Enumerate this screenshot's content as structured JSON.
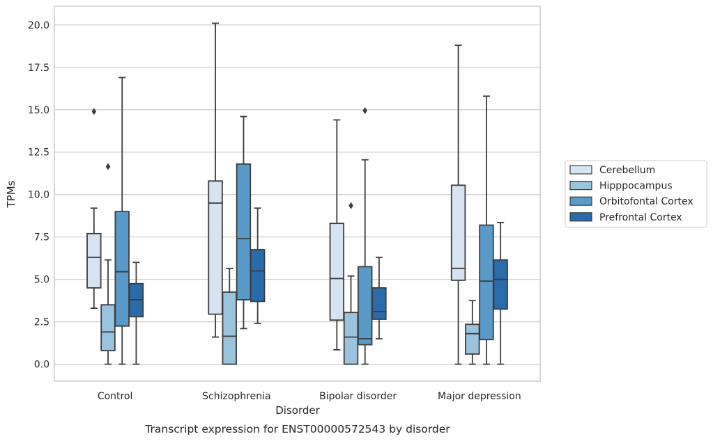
{
  "chart_data": {
    "type": "box",
    "xlabel": "Disorder",
    "ylabel": "TPMs",
    "caption": "Transcript expression for ENST00000572543 by disorder",
    "ylim": [
      -1.0,
      21.1
    ],
    "yticks": [
      0.0,
      2.5,
      5.0,
      7.5,
      10.0,
      12.5,
      15.0,
      17.5,
      20.0
    ],
    "ytick_labels": [
      "0.0",
      "2.5",
      "5.0",
      "7.5",
      "10.0",
      "12.5",
      "15.0",
      "17.5",
      "20.0"
    ],
    "grid": "horizontal",
    "legend_position": "right-center",
    "categories": [
      "Control",
      "Schizophrenia",
      "Bipolar disorder",
      "Major depression"
    ],
    "series": [
      {
        "name": "Cerebellum",
        "color": "#d6e4f2",
        "boxes": [
          {
            "whislo": 3.3,
            "q1": 4.5,
            "med": 6.3,
            "q3": 7.7,
            "whishi": 9.2,
            "fliers": [
              14.9
            ]
          },
          {
            "whislo": 1.6,
            "q1": 2.95,
            "med": 9.5,
            "q3": 10.8,
            "whishi": 20.1,
            "fliers": []
          },
          {
            "whislo": 0.85,
            "q1": 2.6,
            "med": 5.05,
            "q3": 8.3,
            "whishi": 14.4,
            "fliers": []
          },
          {
            "whislo": 0.0,
            "q1": 4.95,
            "med": 5.65,
            "q3": 10.55,
            "whishi": 18.8,
            "fliers": []
          }
        ]
      },
      {
        "name": "Hipppocampus",
        "color": "#9ac3de",
        "boxes": [
          {
            "whislo": 0.0,
            "q1": 0.8,
            "med": 1.9,
            "q3": 3.5,
            "whishi": 6.15,
            "fliers": [
              11.65
            ]
          },
          {
            "whislo": 0.0,
            "q1": 0.0,
            "med": 1.65,
            "q3": 4.25,
            "whishi": 5.65,
            "fliers": []
          },
          {
            "whislo": 0.0,
            "q1": 0.0,
            "med": 1.6,
            "q3": 3.05,
            "whishi": 5.2,
            "fliers": [
              9.35
            ]
          },
          {
            "whislo": 0.0,
            "q1": 0.6,
            "med": 1.8,
            "q3": 2.35,
            "whishi": 3.75,
            "fliers": []
          }
        ]
      },
      {
        "name": "Orbitofontal Cortex",
        "color": "#5a9ac8",
        "boxes": [
          {
            "whislo": 0.0,
            "q1": 2.25,
            "med": 5.45,
            "q3": 9.0,
            "whishi": 16.9,
            "fliers": []
          },
          {
            "whislo": 2.1,
            "q1": 3.8,
            "med": 7.4,
            "q3": 11.8,
            "whishi": 14.6,
            "fliers": []
          },
          {
            "whislo": 0.0,
            "q1": 1.15,
            "med": 1.5,
            "q3": 5.75,
            "whishi": 12.05,
            "fliers": [
              14.95
            ]
          },
          {
            "whislo": 0.0,
            "q1": 1.45,
            "med": 4.9,
            "q3": 8.2,
            "whishi": 15.8,
            "fliers": []
          }
        ]
      },
      {
        "name": "Prefrontal Cortex",
        "color": "#2a6bac",
        "boxes": [
          {
            "whislo": 0.0,
            "q1": 2.8,
            "med": 3.8,
            "q3": 4.75,
            "whishi": 6.0,
            "fliers": []
          },
          {
            "whislo": 2.4,
            "q1": 3.7,
            "med": 5.5,
            "q3": 6.75,
            "whishi": 9.2,
            "fliers": []
          },
          {
            "whislo": 1.5,
            "q1": 2.65,
            "med": 3.1,
            "q3": 4.5,
            "whishi": 6.3,
            "fliers": []
          },
          {
            "whislo": 0.0,
            "q1": 3.25,
            "med": 5.0,
            "q3": 6.15,
            "whishi": 8.35,
            "fliers": []
          }
        ]
      }
    ]
  }
}
